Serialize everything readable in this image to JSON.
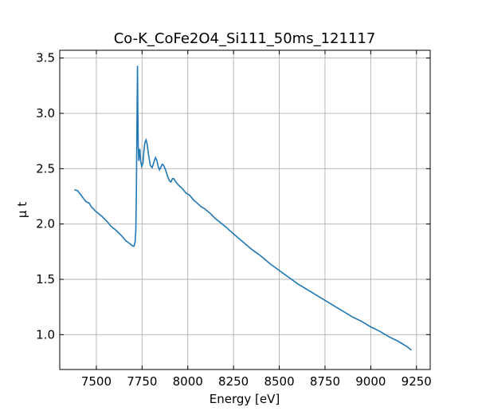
{
  "chart_data": {
    "type": "line",
    "title": "Co-K_CoFe2O4_Si111_50ms_121117",
    "xlabel": "Energy [eV]",
    "ylabel": "μ t",
    "xlim": [
      7300,
      9325
    ],
    "ylim": [
      0.685,
      3.57
    ],
    "xticks": [
      7500,
      7750,
      8000,
      8250,
      8500,
      8750,
      9000,
      9250
    ],
    "yticks": [
      1.0,
      1.5,
      2.0,
      2.5,
      3.0,
      3.5
    ],
    "xtick_labels": [
      "7500",
      "7750",
      "8000",
      "8250",
      "8500",
      "8750",
      "9000",
      "9250"
    ],
    "ytick_labels": [
      "1.0",
      "1.5",
      "2.0",
      "2.5",
      "3.0",
      "3.5"
    ],
    "grid": true,
    "legend": "none",
    "series": [
      {
        "color": "#1f77b4",
        "points": [
          [
            7380,
            2.31
          ],
          [
            7398,
            2.3
          ],
          [
            7412,
            2.27
          ],
          [
            7430,
            2.23
          ],
          [
            7445,
            2.2
          ],
          [
            7460,
            2.19
          ],
          [
            7475,
            2.15
          ],
          [
            7500,
            2.11
          ],
          [
            7530,
            2.07
          ],
          [
            7560,
            2.02
          ],
          [
            7580,
            1.98
          ],
          [
            7610,
            1.94
          ],
          [
            7640,
            1.89
          ],
          [
            7660,
            1.85
          ],
          [
            7685,
            1.82
          ],
          [
            7700,
            1.8
          ],
          [
            7706,
            1.8
          ],
          [
            7712,
            1.84
          ],
          [
            7716,
            1.95
          ],
          [
            7719,
            2.3
          ],
          [
            7722,
            2.9
          ],
          [
            7725,
            3.43
          ],
          [
            7727,
            3.0
          ],
          [
            7729,
            2.7
          ],
          [
            7732,
            2.57
          ],
          [
            7735,
            2.63
          ],
          [
            7738,
            2.68
          ],
          [
            7742,
            2.57
          ],
          [
            7748,
            2.52
          ],
          [
            7755,
            2.55
          ],
          [
            7760,
            2.66
          ],
          [
            7766,
            2.74
          ],
          [
            7772,
            2.76
          ],
          [
            7778,
            2.72
          ],
          [
            7785,
            2.63
          ],
          [
            7795,
            2.53
          ],
          [
            7805,
            2.51
          ],
          [
            7815,
            2.56
          ],
          [
            7823,
            2.6
          ],
          [
            7830,
            2.58
          ],
          [
            7838,
            2.52
          ],
          [
            7845,
            2.49
          ],
          [
            7852,
            2.51
          ],
          [
            7860,
            2.54
          ],
          [
            7868,
            2.53
          ],
          [
            7878,
            2.49
          ],
          [
            7890,
            2.43
          ],
          [
            7900,
            2.39
          ],
          [
            7908,
            2.38
          ],
          [
            7916,
            2.41
          ],
          [
            7923,
            2.41
          ],
          [
            7935,
            2.38
          ],
          [
            7950,
            2.35
          ],
          [
            7970,
            2.32
          ],
          [
            7990,
            2.28
          ],
          [
            8010,
            2.26
          ],
          [
            8030,
            2.22
          ],
          [
            8050,
            2.19
          ],
          [
            8070,
            2.16
          ],
          [
            8090,
            2.14
          ],
          [
            8120,
            2.1
          ],
          [
            8150,
            2.05
          ],
          [
            8180,
            2.01
          ],
          [
            8210,
            1.97
          ],
          [
            8250,
            1.91
          ],
          [
            8300,
            1.84
          ],
          [
            8350,
            1.77
          ],
          [
            8400,
            1.71
          ],
          [
            8450,
            1.64
          ],
          [
            8500,
            1.58
          ],
          [
            8550,
            1.52
          ],
          [
            8600,
            1.46
          ],
          [
            8650,
            1.41
          ],
          [
            8700,
            1.36
          ],
          [
            8750,
            1.31
          ],
          [
            8800,
            1.26
          ],
          [
            8850,
            1.21
          ],
          [
            8900,
            1.16
          ],
          [
            8950,
            1.12
          ],
          [
            9000,
            1.07
          ],
          [
            9050,
            1.03
          ],
          [
            9100,
            0.98
          ],
          [
            9150,
            0.94
          ],
          [
            9200,
            0.89
          ],
          [
            9222,
            0.86
          ]
        ]
      }
    ]
  }
}
